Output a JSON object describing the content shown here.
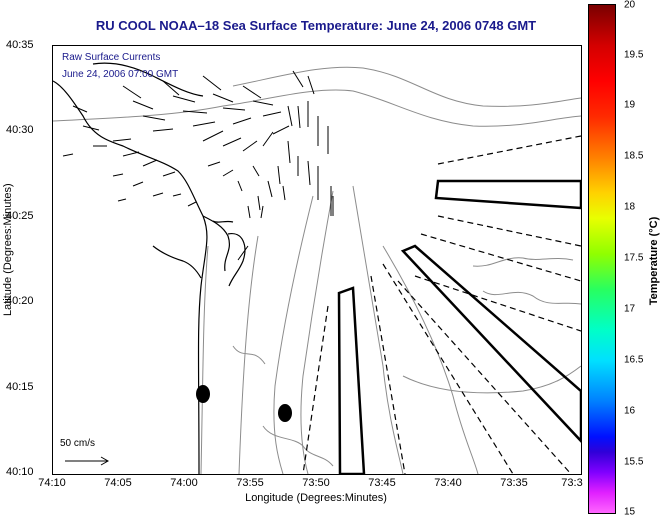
{
  "title": "RU COOL   NOAA–18  Sea Surface Temperature:  June 24, 2006 0748 GMT",
  "legend": {
    "line1": "Raw Surface Currents",
    "line2": "June 24, 2006 07:00 GMT"
  },
  "scale_label": "50 cm/s",
  "x_axis": {
    "title": "Longitude (Degrees:Minutes)",
    "ticks": [
      "74:10",
      "74:05",
      "74:00",
      "73:55",
      "73:50",
      "73:45",
      "73:40",
      "73:35",
      "73:3"
    ]
  },
  "y_axis": {
    "title": "Latitude (Degrees:Minutes)",
    "ticks": [
      "40:35",
      "40:30",
      "40:25",
      "40:20",
      "40:15",
      "40:10"
    ]
  },
  "colorbar": {
    "title": "Temperature (°C)",
    "ticks": [
      "20",
      "19.5",
      "19",
      "18.5",
      "18",
      "17.5",
      "17",
      "16.5",
      "16",
      "15.5",
      "15"
    ]
  },
  "colors": {
    "title": "#1a1a8c",
    "coastline": "#000000",
    "bathymetry": "#8c8c8c"
  }
}
